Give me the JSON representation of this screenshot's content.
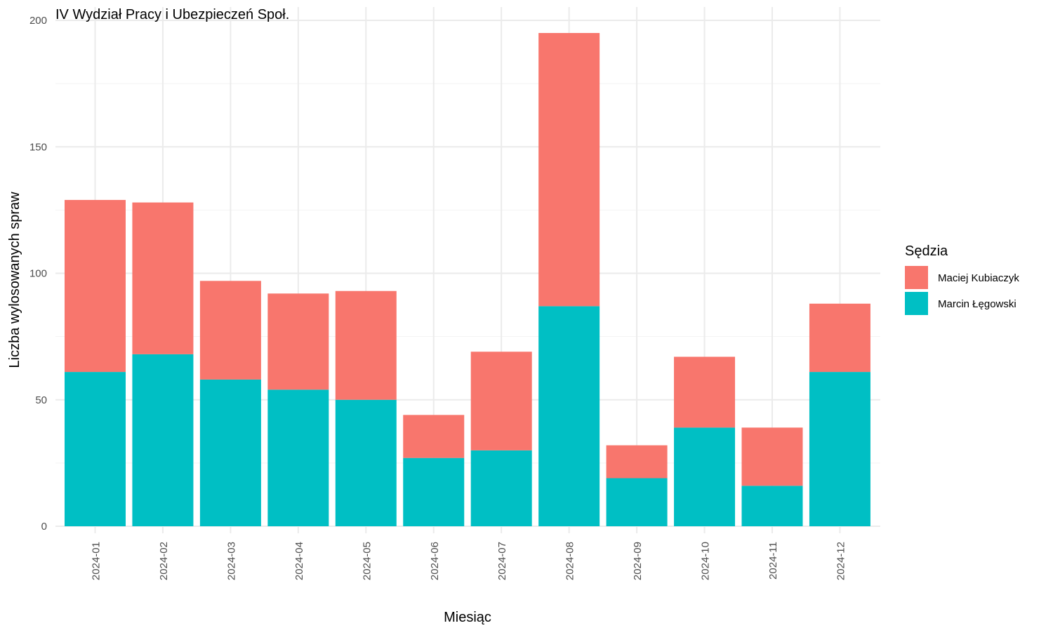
{
  "chart_data": {
    "type": "bar",
    "stacked": true,
    "title": "IV Wydział Pracy i Ubezpieczeń Społ.",
    "xlabel": "Miesiąc",
    "ylabel": "Liczba wylosowanych spraw",
    "ylim": [
      0,
      200
    ],
    "yticks": [
      0,
      50,
      100,
      150,
      200
    ],
    "categories": [
      "2024-01",
      "2024-02",
      "2024-03",
      "2024-04",
      "2024-05",
      "2024-06",
      "2024-07",
      "2024-08",
      "2024-09",
      "2024-10",
      "2024-11",
      "2024-12"
    ],
    "series": [
      {
        "name": "Marcin Łęgowski",
        "color": "#00BFC4",
        "values": [
          61,
          68,
          58,
          54,
          50,
          27,
          30,
          87,
          19,
          39,
          16,
          61
        ]
      },
      {
        "name": "Maciej Kubiaczyk",
        "color": "#F8766D",
        "values": [
          68,
          60,
          39,
          38,
          43,
          17,
          39,
          108,
          13,
          28,
          23,
          27
        ]
      }
    ],
    "legend": {
      "title": "Sędzia",
      "position": "right",
      "items": [
        {
          "label": "Maciej Kubiaczyk",
          "color": "#F8766D"
        },
        {
          "label": "Marcin Łęgowski",
          "color": "#00BFC4"
        }
      ]
    },
    "grid": true
  }
}
